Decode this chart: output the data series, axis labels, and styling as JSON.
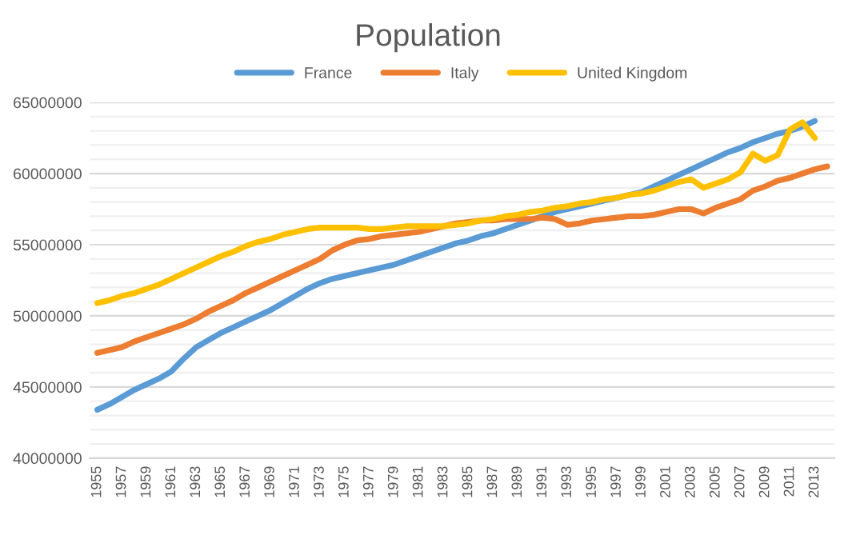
{
  "chart_data": {
    "type": "line",
    "title": "Population",
    "categories": [
      "1955",
      null,
      "1957",
      null,
      "1959",
      null,
      "1961",
      null,
      "1963",
      null,
      "1965",
      null,
      "1967",
      null,
      "1969",
      null,
      "1971",
      null,
      "1973",
      null,
      "1975",
      null,
      "1977",
      null,
      "1979",
      null,
      "1981",
      null,
      "1983",
      null,
      "1985",
      null,
      "1987",
      null,
      "1989",
      null,
      "1991",
      null,
      "1993",
      null,
      "1995",
      null,
      "1997",
      null,
      "1999",
      null,
      "2001",
      null,
      "2003",
      null,
      "2005",
      null,
      "2007",
      null,
      "2009",
      null,
      "2011",
      null,
      "2013",
      null
    ],
    "series": [
      {
        "name": "France",
        "color": "#5b9bd5",
        "values": [
          43400000,
          43800000,
          44300000,
          44800000,
          45200000,
          45600000,
          46100000,
          47000000,
          47800000,
          48300000,
          48800000,
          49200000,
          49600000,
          50000000,
          50400000,
          50900000,
          51400000,
          51900000,
          52300000,
          52600000,
          52800000,
          53000000,
          53200000,
          53400000,
          53600000,
          53900000,
          54200000,
          54500000,
          54800000,
          55100000,
          55300000,
          55600000,
          55800000,
          56100000,
          56400000,
          56700000,
          57000000,
          57300000,
          57500000,
          57700000,
          57900000,
          58100000,
          58300000,
          58500000,
          58700000,
          59100000,
          59500000,
          59900000,
          60300000,
          60700000,
          61100000,
          61500000,
          61800000,
          62200000,
          62500000,
          62800000,
          63000000,
          63300000,
          63700000,
          null
        ]
      },
      {
        "name": "Italy",
        "color": "#ed7d31",
        "values": [
          47400000,
          47600000,
          47800000,
          48200000,
          48500000,
          48800000,
          49100000,
          49400000,
          49800000,
          50300000,
          50700000,
          51100000,
          51600000,
          52000000,
          52400000,
          52800000,
          53200000,
          53600000,
          54000000,
          54600000,
          55000000,
          55300000,
          55400000,
          55600000,
          55700000,
          55800000,
          55900000,
          56100000,
          56300000,
          56500000,
          56600000,
          56700000,
          56700000,
          56800000,
          56800000,
          56800000,
          56900000,
          56800000,
          56400000,
          56500000,
          56700000,
          56800000,
          56900000,
          57000000,
          57000000,
          57100000,
          57300000,
          57500000,
          57500000,
          57200000,
          57600000,
          57900000,
          58200000,
          58800000,
          59100000,
          59500000,
          59700000,
          60000000,
          60300000,
          60500000
        ]
      },
      {
        "name": "United Kingdom",
        "color": "#ffc000",
        "values": [
          50900000,
          51100000,
          51400000,
          51600000,
          51900000,
          52200000,
          52600000,
          53000000,
          53400000,
          53800000,
          54200000,
          54500000,
          54900000,
          55200000,
          55400000,
          55700000,
          55900000,
          56100000,
          56200000,
          56200000,
          56200000,
          56200000,
          56100000,
          56100000,
          56200000,
          56300000,
          56300000,
          56300000,
          56300000,
          56400000,
          56500000,
          56700000,
          56800000,
          57000000,
          57100000,
          57300000,
          57400000,
          57600000,
          57700000,
          57900000,
          58000000,
          58200000,
          58300000,
          58500000,
          58600000,
          58800000,
          59100000,
          59400000,
          59600000,
          59000000,
          59300000,
          59600000,
          60100000,
          61400000,
          60900000,
          61300000,
          63100000,
          63600000,
          62500000,
          null
        ]
      }
    ],
    "ylim": [
      40000000,
      65000000
    ],
    "yticks": [
      40000000,
      {
        "value": 41000000,
        "label": null
      },
      {
        "value": 42000000,
        "label": null
      },
      {
        "value": 43000000,
        "label": null
      },
      {
        "value": 44000000,
        "label": null
      },
      45000000,
      {
        "value": 46000000,
        "label": null
      },
      {
        "value": 47000000,
        "label": null
      },
      {
        "value": 48000000,
        "label": null
      },
      {
        "value": 49000000,
        "label": null
      },
      50000000,
      {
        "value": 51000000,
        "label": null
      },
      {
        "value": 52000000,
        "label": null
      },
      {
        "value": 53000000,
        "label": null
      },
      {
        "value": 54000000,
        "label": null
      },
      55000000,
      {
        "value": 56000000,
        "label": null
      },
      {
        "value": 57000000,
        "label": null
      },
      {
        "value": 58000000,
        "label": null
      },
      {
        "value": 59000000,
        "label": null
      },
      60000000,
      {
        "value": 61000000,
        "label": null
      },
      {
        "value": 62000000,
        "label": null
      },
      {
        "value": 63000000,
        "label": null
      },
      {
        "value": 64000000,
        "label": null
      },
      65000000
    ],
    "grid": "y",
    "legend": "top",
    "marker": "none",
    "line_style": "solid"
  }
}
